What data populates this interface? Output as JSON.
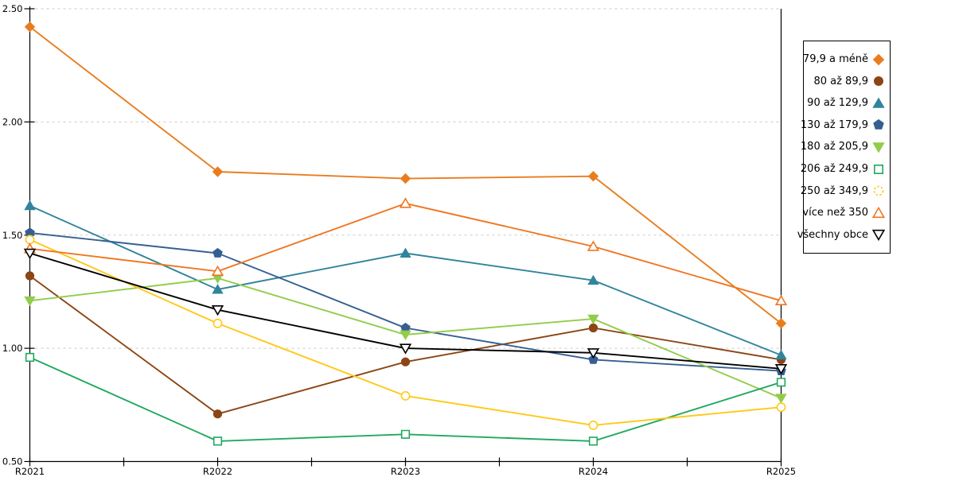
{
  "chart_data": {
    "type": "line",
    "title": "",
    "xlabel": "",
    "ylabel": "",
    "categories": [
      "R2021",
      "R2022",
      "R2023",
      "R2024",
      "R2025"
    ],
    "y_tick_labels": [
      "0.50",
      "1.00",
      "1.50",
      "2.00",
      "2.50"
    ],
    "y_tick_values": [
      0.5,
      1.0,
      1.5,
      2.0,
      2.5
    ],
    "ylim": [
      0.5,
      2.5
    ],
    "grid": "horizontal-dashed",
    "grid_color": "#c9c9c9",
    "axis_color": "#000000",
    "x_minor_ticks": true,
    "legend_position": "right",
    "series": [
      {
        "name": "79,9 a méně",
        "marker": "diamond",
        "style": "filled",
        "color": "#E87D1E",
        "values": [
          2.42,
          1.78,
          1.75,
          1.76,
          1.11
        ]
      },
      {
        "name": "80 až 89,9",
        "marker": "circle",
        "style": "filled",
        "color": "#8C4515",
        "values": [
          1.32,
          0.71,
          0.94,
          1.09,
          0.95
        ]
      },
      {
        "name": "90 až 129,9",
        "marker": "triangle-up",
        "style": "filled",
        "color": "#31849B",
        "values": [
          1.63,
          1.26,
          1.42,
          1.3,
          0.97
        ]
      },
      {
        "name": "130 až 179,9",
        "marker": "pentagon",
        "style": "filled",
        "color": "#365F91",
        "values": [
          1.51,
          1.42,
          1.09,
          0.95,
          0.9
        ]
      },
      {
        "name": "180 až 205,9",
        "marker": "triangle-down",
        "style": "filled",
        "color": "#92CC4B",
        "values": [
          1.21,
          1.31,
          1.06,
          1.13,
          0.78
        ]
      },
      {
        "name": "206 až 249,9",
        "marker": "square",
        "style": "open",
        "color": "#21A95F",
        "values": [
          0.96,
          0.59,
          0.62,
          0.59,
          0.85
        ]
      },
      {
        "name": "250 až 349,9",
        "marker": "circle",
        "style": "open",
        "color": "#FFC918",
        "values": [
          1.48,
          1.11,
          0.79,
          0.66,
          0.74
        ]
      },
      {
        "name": "více než 350",
        "marker": "triangle-up",
        "style": "open",
        "color": "#EF7622",
        "values": [
          1.44,
          1.34,
          1.64,
          1.45,
          1.21
        ]
      },
      {
        "name": "všechny obce",
        "marker": "triangle-down",
        "style": "open",
        "color": "#000000",
        "values": [
          1.42,
          1.17,
          1.0,
          0.98,
          0.91
        ]
      }
    ]
  }
}
